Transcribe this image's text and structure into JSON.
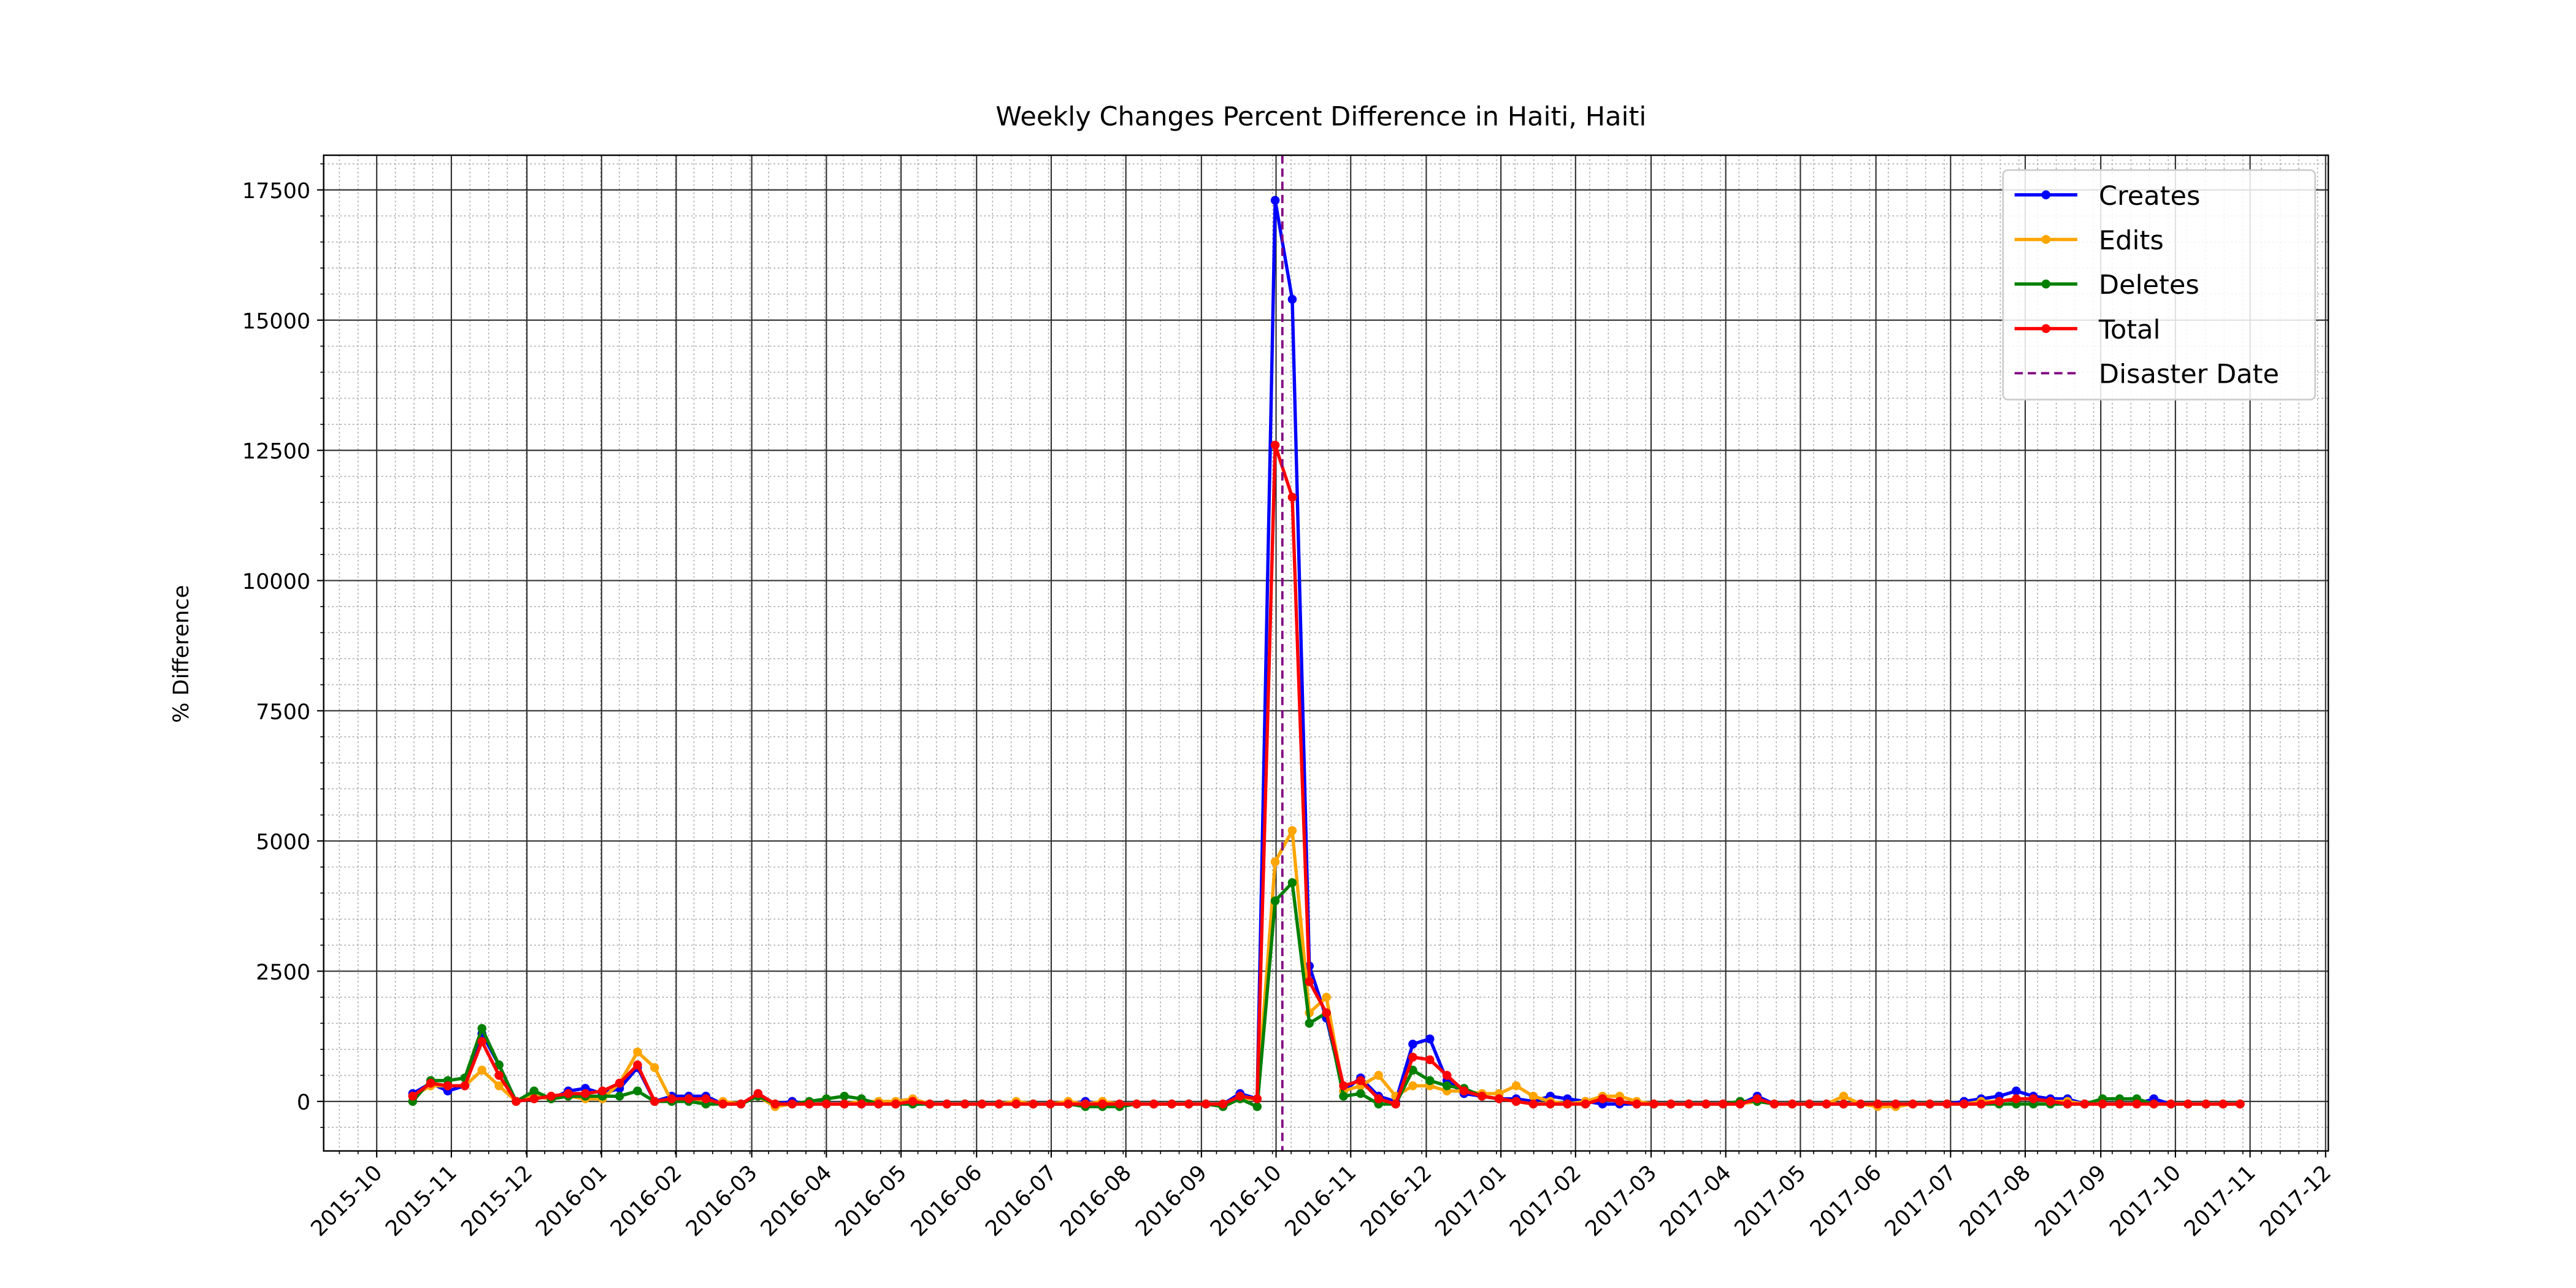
{
  "chart_data": {
    "type": "line",
    "title": "Weekly Changes Percent Difference in Haiti, Haiti",
    "y_label": "% Difference",
    "x": [
      2015.79,
      2015.81,
      2015.829,
      2015.848,
      2015.867,
      2015.886,
      2015.905,
      2015.925,
      2015.944,
      2015.963,
      2015.982,
      2016.001,
      2016.02,
      2016.04,
      2016.059,
      2016.078,
      2016.097,
      2016.116,
      2016.135,
      2016.155,
      2016.174,
      2016.193,
      2016.212,
      2016.231,
      2016.25,
      2016.27,
      2016.289,
      2016.308,
      2016.327,
      2016.346,
      2016.365,
      2016.384,
      2016.404,
      2016.423,
      2016.442,
      2016.461,
      2016.48,
      2016.499,
      2016.519,
      2016.538,
      2016.557,
      2016.576,
      2016.595,
      2016.614,
      2016.634,
      2016.653,
      2016.672,
      2016.691,
      2016.71,
      2016.729,
      2016.749,
      2016.768,
      2016.787,
      2016.806,
      2016.825,
      2016.844,
      2016.864,
      2016.883,
      2016.902,
      2016.921,
      2016.94,
      2016.959,
      2016.979,
      2016.998,
      2017.017,
      2017.036,
      2017.055,
      2017.074,
      2017.094,
      2017.113,
      2017.132,
      2017.151,
      2017.17,
      2017.189,
      2017.209,
      2017.228,
      2017.247,
      2017.266,
      2017.285,
      2017.304,
      2017.324,
      2017.343,
      2017.362,
      2017.381,
      2017.4,
      2017.419,
      2017.439,
      2017.458,
      2017.477,
      2017.496,
      2017.515,
      2017.534,
      2017.554,
      2017.573,
      2017.592,
      2017.611,
      2017.63,
      2017.649,
      2017.669,
      2017.688,
      2017.707,
      2017.726,
      2017.745,
      2017.764,
      2017.784,
      2017.803,
      2017.822
    ],
    "series": [
      {
        "name": "Creates",
        "color": "#0000ff",
        "values": [
          150,
          350,
          200,
          300,
          1300,
          700,
          0,
          100,
          50,
          200,
          250,
          150,
          250,
          650,
          0,
          100,
          100,
          100,
          -50,
          -50,
          150,
          -50,
          0,
          -50,
          -50,
          -50,
          -50,
          -50,
          -50,
          -50,
          -50,
          -50,
          -50,
          -50,
          -50,
          -50,
          -50,
          -50,
          -50,
          0,
          -50,
          -50,
          -50,
          -50,
          -50,
          -50,
          -50,
          -50,
          150,
          50,
          17300,
          15400,
          2600,
          1600,
          200,
          450,
          100,
          0,
          1100,
          1200,
          400,
          150,
          100,
          50,
          50,
          0,
          100,
          50,
          0,
          -50,
          -50,
          -50,
          -50,
          -50,
          -50,
          -50,
          -50,
          -50,
          100,
          -50,
          -50,
          -50,
          -50,
          -50,
          -50,
          -50,
          -50,
          -50,
          -50,
          -50,
          0,
          50,
          100,
          200,
          100,
          50,
          50,
          -50,
          -50,
          -50,
          -50,
          50,
          -50,
          -50,
          -50,
          -50,
          -50
        ]
      },
      {
        "name": "Edits",
        "color": "#ffa500",
        "values": [
          100,
          300,
          300,
          300,
          600,
          300,
          0,
          100,
          50,
          100,
          50,
          50,
          350,
          950,
          650,
          0,
          50,
          -50,
          0,
          -50,
          100,
          -100,
          -50,
          -50,
          -50,
          -50,
          0,
          0,
          0,
          50,
          -50,
          -50,
          -50,
          -50,
          -50,
          0,
          -50,
          -50,
          0,
          -50,
          0,
          -50,
          -50,
          -50,
          -50,
          -50,
          -50,
          -50,
          50,
          50,
          4600,
          5200,
          1700,
          2000,
          200,
          300,
          500,
          100,
          300,
          300,
          200,
          200,
          150,
          150,
          300,
          100,
          0,
          -50,
          0,
          100,
          100,
          0,
          -50,
          -50,
          -50,
          -50,
          -50,
          -50,
          0,
          -50,
          -50,
          -50,
          -50,
          100,
          -50,
          -100,
          -100,
          -50,
          -50,
          -50,
          -50,
          0,
          0,
          50,
          50,
          0,
          0,
          -50,
          -50,
          -50,
          -50,
          -50,
          -50,
          -50,
          -50,
          -50,
          -50
        ]
      },
      {
        "name": "Deletes",
        "color": "#008000",
        "values": [
          0,
          400,
          400,
          450,
          1400,
          700,
          0,
          200,
          50,
          100,
          100,
          100,
          100,
          200,
          0,
          0,
          0,
          -50,
          -50,
          -50,
          100,
          -50,
          -50,
          0,
          50,
          100,
          50,
          -50,
          -50,
          -50,
          -50,
          -50,
          -50,
          -50,
          -50,
          -50,
          -50,
          -50,
          -50,
          -100,
          -100,
          -100,
          -50,
          -50,
          -50,
          -50,
          -50,
          -100,
          50,
          -100,
          3850,
          4200,
          1500,
          1700,
          100,
          150,
          -50,
          -50,
          600,
          400,
          300,
          250,
          100,
          50,
          0,
          -50,
          -50,
          -50,
          -50,
          50,
          0,
          -50,
          -50,
          -50,
          -50,
          -50,
          -50,
          0,
          0,
          -50,
          -50,
          -50,
          -50,
          -50,
          -50,
          -50,
          -50,
          -50,
          -50,
          -50,
          -50,
          -50,
          -50,
          -50,
          -50,
          -50,
          -50,
          -50,
          50,
          50,
          50,
          -50,
          -50,
          -50,
          -50,
          -50,
          -50
        ]
      },
      {
        "name": "Total",
        "color": "#ff0000",
        "values": [
          100,
          350,
          300,
          300,
          1150,
          500,
          0,
          50,
          100,
          150,
          150,
          200,
          350,
          700,
          0,
          50,
          50,
          50,
          -50,
          -50,
          150,
          -50,
          -50,
          -50,
          -50,
          -50,
          -50,
          -50,
          -50,
          0,
          -50,
          -50,
          -50,
          -50,
          -50,
          -50,
          -50,
          -50,
          -50,
          -50,
          -50,
          -50,
          -50,
          -50,
          -50,
          -50,
          -50,
          -50,
          100,
          50,
          12600,
          11600,
          2300,
          1700,
          300,
          400,
          50,
          -50,
          850,
          800,
          500,
          200,
          100,
          50,
          0,
          -50,
          -50,
          -50,
          -50,
          50,
          0,
          -50,
          -50,
          -50,
          -50,
          -50,
          -50,
          -50,
          50,
          -50,
          -50,
          -50,
          -50,
          -50,
          -50,
          -50,
          -50,
          -50,
          -50,
          -50,
          -50,
          -50,
          0,
          50,
          50,
          0,
          -50,
          -50,
          -50,
          -50,
          -50,
          -50,
          -50,
          -50,
          -50,
          -50,
          -50
        ]
      }
    ],
    "disaster": {
      "name": "Disaster Date",
      "x": 2016.757,
      "color": "#800080"
    },
    "xlim": [
      2015.691,
      2017.92
    ],
    "xticks": [
      {
        "value": 2015.75,
        "label": "2015-10"
      },
      {
        "value": 2015.833,
        "label": "2015-11"
      },
      {
        "value": 2015.917,
        "label": "2015-12"
      },
      {
        "value": 2016.0,
        "label": "2016-01"
      },
      {
        "value": 2016.083,
        "label": "2016-02"
      },
      {
        "value": 2016.167,
        "label": "2016-03"
      },
      {
        "value": 2016.25,
        "label": "2016-04"
      },
      {
        "value": 2016.333,
        "label": "2016-05"
      },
      {
        "value": 2016.417,
        "label": "2016-06"
      },
      {
        "value": 2016.5,
        "label": "2016-07"
      },
      {
        "value": 2016.583,
        "label": "2016-08"
      },
      {
        "value": 2016.667,
        "label": "2016-09"
      },
      {
        "value": 2016.75,
        "label": "2016-10"
      },
      {
        "value": 2016.833,
        "label": "2016-11"
      },
      {
        "value": 2016.917,
        "label": "2016-12"
      },
      {
        "value": 2017.0,
        "label": "2017-01"
      },
      {
        "value": 2017.083,
        "label": "2017-02"
      },
      {
        "value": 2017.167,
        "label": "2017-03"
      },
      {
        "value": 2017.25,
        "label": "2017-04"
      },
      {
        "value": 2017.333,
        "label": "2017-05"
      },
      {
        "value": 2017.417,
        "label": "2017-06"
      },
      {
        "value": 2017.5,
        "label": "2017-07"
      },
      {
        "value": 2017.583,
        "label": "2017-08"
      },
      {
        "value": 2017.667,
        "label": "2017-09"
      },
      {
        "value": 2017.75,
        "label": "2017-10"
      },
      {
        "value": 2017.833,
        "label": "2017-11"
      },
      {
        "value": 2017.917,
        "label": "2017-12"
      }
    ],
    "ylim": [
      -951,
      18166
    ],
    "yticks": [
      0,
      2500,
      5000,
      7500,
      10000,
      12500,
      15000,
      17500
    ],
    "grid": true,
    "legend": "upper right"
  }
}
